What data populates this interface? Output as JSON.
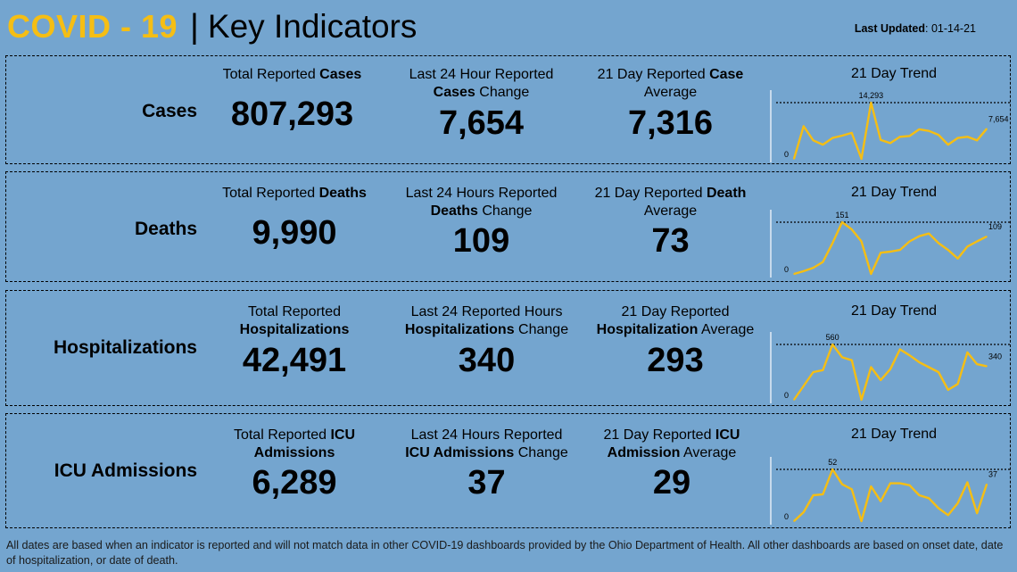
{
  "header": {
    "covid": "COVID - 19",
    "sep": "|",
    "key": "Key Indicators",
    "updated_label": "Last Updated",
    "updated_value": ": 01-14-21"
  },
  "rows": [
    {
      "name": "cases",
      "label": "Cases",
      "total_pre": "Total Reported ",
      "total_bold": "Cases",
      "total_post": "",
      "total_value": "807,293",
      "change_l1": "Last 24 Hour Reported",
      "change_bold": "Cases",
      "change_post": " Change",
      "change_value": "7,654",
      "avg_pre": "21 Day Reported ",
      "avg_bold": "Case",
      "avg_l2": "Average",
      "avg_value": "7,316",
      "trend_title": "21 Day Trend"
    },
    {
      "name": "deaths",
      "label": "Deaths",
      "total_pre": "Total Reported ",
      "total_bold": "Deaths",
      "total_post": "",
      "total_value": "9,990",
      "change_l1": "Last 24 Hours Reported",
      "change_bold": "Deaths",
      "change_post": " Change",
      "change_value": "109",
      "avg_pre": "21 Day Reported ",
      "avg_bold": "Death",
      "avg_l2": "Average",
      "avg_value": "73",
      "trend_title": "21 Day Trend"
    },
    {
      "name": "hospitalizations",
      "label": "Hospitalizations",
      "total_pre": "Total Reported",
      "total_bold": "Hospitalizations",
      "total_post": "",
      "total_value": "42,491",
      "change_l1": "Last 24 Reported Hours",
      "change_bold": "Hospitalizations",
      "change_post": " Change",
      "change_value": "340",
      "avg_pre": "21 Day Reported",
      "avg_bold": "Hospitalization",
      "avg_l2": " Average",
      "avg_value": "293",
      "trend_title": "21 Day Trend"
    },
    {
      "name": "icu",
      "label": "ICU Admissions",
      "total_pre": "Total Reported ",
      "total_bold": "ICU",
      "total_post": "Admissions",
      "total_value": "6,289",
      "change_l1": "Last 24 Hours Reported",
      "change_bold": "ICU Admissions",
      "change_post": " Change",
      "change_value": "37",
      "avg_pre": "21 Day Reported ",
      "avg_bold": "ICU",
      "avg_l2": "Admission",
      "avg_value": "29",
      "trend_title": "21 Day Trend"
    }
  ],
  "footer": "All dates are based when an indicator is reported and will not match data in other COVID-19 dashboards provided by the Ohio Department of Health. All other dashboards are based on onset date, date of hospitalization, or date of death.",
  "colors": {
    "line": "#f5be14",
    "background": "#74a5cf"
  },
  "chart_data": [
    {
      "type": "line",
      "title": "21 Day Trend",
      "series_for": "cases",
      "y_min_label": "0",
      "peak_label": "14,293",
      "last_label": "7,654",
      "values": [
        0,
        8300,
        4700,
        3600,
        5300,
        5900,
        6600,
        0,
        14293,
        4800,
        4000,
        5600,
        5800,
        7500,
        7100,
        6100,
        3600,
        5300,
        5600,
        4700,
        7654
      ]
    },
    {
      "type": "line",
      "title": "21 Day Trend",
      "series_for": "deaths",
      "y_min_label": "0",
      "peak_label": "151",
      "last_label": "109",
      "values": [
        0,
        8,
        18,
        35,
        90,
        151,
        130,
        95,
        0,
        62,
        65,
        70,
        95,
        110,
        118,
        90,
        70,
        45,
        80,
        95,
        109
      ]
    },
    {
      "type": "line",
      "title": "21 Day Trend",
      "series_for": "hospitalizations",
      "y_min_label": "0",
      "peak_label": "560",
      "last_label": "340",
      "values": [
        0,
        140,
        280,
        300,
        560,
        430,
        400,
        0,
        330,
        200,
        310,
        510,
        450,
        380,
        330,
        280,
        100,
        160,
        480,
        360,
        340
      ]
    },
    {
      "type": "line",
      "title": "21 Day Trend",
      "series_for": "icu",
      "y_min_label": "0",
      "peak_label": "52",
      "last_label": "37",
      "values": [
        0,
        9,
        26,
        27,
        52,
        37,
        32,
        0,
        35,
        20,
        38,
        38,
        36,
        26,
        23,
        13,
        6,
        18,
        39,
        8,
        37
      ]
    }
  ]
}
